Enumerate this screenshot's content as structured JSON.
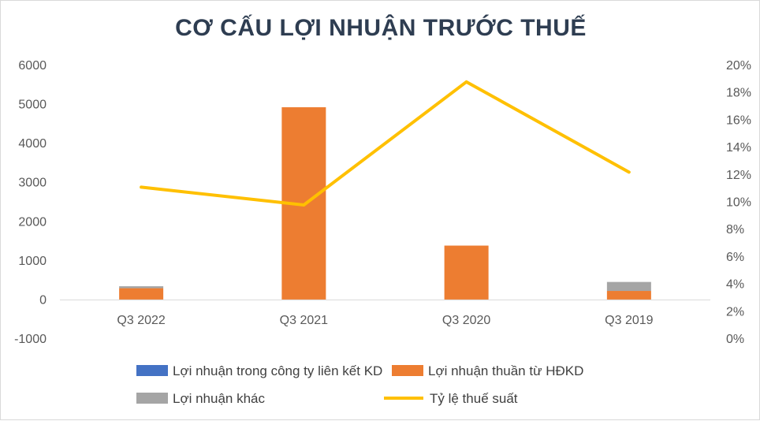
{
  "chart_data": {
    "type": "bar",
    "title": "CƠ CẤU LỢI NHUẬN TRƯỚC THUẾ",
    "categories": [
      "Q3 2022",
      "Q3 2021",
      "Q3 2020",
      "Q3 2019"
    ],
    "stacked": true,
    "series": [
      {
        "name": "Lợi nhuận trong công ty liên kết KD",
        "type": "bar",
        "axis": "left",
        "color": "#4472c4",
        "values": [
          0,
          0,
          0,
          0
        ]
      },
      {
        "name": "Lợi nhuận thuần từ HĐKD",
        "type": "bar",
        "axis": "left",
        "color": "#ed7d31",
        "values": [
          300,
          4930,
          1390,
          230
        ]
      },
      {
        "name": "Lợi nhuận khác",
        "type": "bar",
        "axis": "left",
        "color": "#a5a5a5",
        "values": [
          50,
          0,
          0,
          230
        ]
      },
      {
        "name": "Tỷ lệ thuế suất",
        "type": "line",
        "axis": "right",
        "color": "#ffc000",
        "values": [
          0.111,
          0.098,
          0.188,
          0.122
        ]
      }
    ],
    "y_left": {
      "min": -1000,
      "max": 6000,
      "ticks": [
        -1000,
        0,
        1000,
        2000,
        3000,
        4000,
        5000,
        6000
      ]
    },
    "y_right": {
      "min": 0,
      "max": 0.2,
      "ticks": [
        0,
        0.02,
        0.04,
        0.06,
        0.08,
        0.1,
        0.12,
        0.14,
        0.16,
        0.18,
        0.2
      ],
      "format": "percent"
    },
    "grid": false,
    "legend_position": "bottom"
  }
}
